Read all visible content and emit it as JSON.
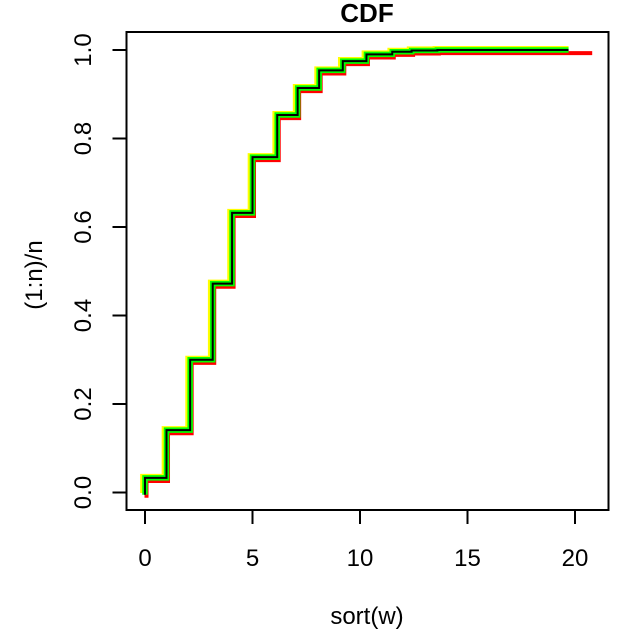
{
  "background_color": "#FFFFFF",
  "axis_color": "#000000",
  "chart_data": {
    "type": "line",
    "subtype": "step-ecdf",
    "title": "CDF",
    "xlabel": "sort(w)",
    "ylabel": "(1:n)/n",
    "x_ticks": [
      0,
      5,
      10,
      15,
      20
    ],
    "x_tick_labels": [
      "0",
      "5",
      "10",
      "15",
      "20"
    ],
    "y_ticks": [
      0.0,
      0.2,
      0.4,
      0.6,
      0.8,
      1.0
    ],
    "y_tick_labels": [
      "0.0",
      "0.2",
      "0.4",
      "0.6",
      "0.8",
      "1.0"
    ],
    "xlim": [
      -0.85,
      21.6
    ],
    "ylim": [
      -0.04,
      1.04
    ],
    "grid": false,
    "legend": "none",
    "step_x": [
      0,
      1.0,
      2.1,
      3.15,
      4.05,
      5.0,
      6.15,
      7.1,
      8.1,
      9.2,
      10.3,
      11.5,
      12.4,
      13.6
    ],
    "levels": [
      0.033,
      0.141,
      0.3,
      0.472,
      0.632,
      0.758,
      0.853,
      0.914,
      0.954,
      0.975,
      0.99,
      0.996,
      0.999,
      1.0
    ],
    "y_start": -0.005,
    "series": [
      {
        "name": "ecdf-red",
        "color": "#FF0000",
        "line_width": 4.0,
        "x_offset": 0.07,
        "y_offset": -0.007,
        "x_end": 20.8
      },
      {
        "name": "ecdf-yellow",
        "color": "#FFFF00",
        "line_width": 4.5,
        "x_offset": -0.12,
        "y_offset": 0.004,
        "x_end": 19.7
      },
      {
        "name": "ecdf-green",
        "color": "#00FF00",
        "line_width": 5.5,
        "x_offset": 0.0,
        "y_offset": 0.0,
        "x_end": 19.7
      },
      {
        "name": "ecdf-black",
        "color": "#000000",
        "line_width": 2.0,
        "x_offset": 0.0,
        "y_offset": 0.0,
        "x_end": 19.7
      }
    ]
  }
}
